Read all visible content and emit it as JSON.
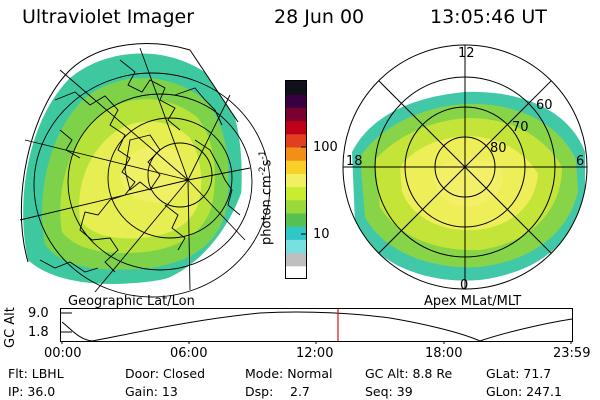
{
  "header": {
    "instrument": "Ultraviolet Imager",
    "date": "28 Jun 00",
    "time": "13:05:46 UT"
  },
  "colorbar": {
    "unit_label": "photon cm",
    "unit_sup1": "-2",
    "unit_mid": "s",
    "unit_sup2": "-1",
    "ticks": [
      "100",
      "10"
    ],
    "colors": [
      "#ffffff",
      "#bfbfbf",
      "#78e0e0",
      "#2ec8c8",
      "#58c050",
      "#9ad83c",
      "#c8ec30",
      "#f2f060",
      "#f8d028",
      "#f09018",
      "#e04020",
      "#c00018",
      "#7a0030",
      "#380040",
      "#101018"
    ]
  },
  "left_map": {
    "label": "Geographic Lat/Lon"
  },
  "right_map": {
    "label": "Apex  MLat/MLT",
    "mlt_labels": {
      "top": "12",
      "left": "18",
      "right": "6",
      "bottom": "0"
    },
    "lat_labels": [
      "60",
      "70",
      "80"
    ]
  },
  "altitude_plot": {
    "ylabel": "GC Alt",
    "yticks": [
      "9.0",
      "1.8"
    ],
    "xticks": [
      "00:00",
      "06:00",
      "12:00",
      "18:00",
      "23:59"
    ],
    "marker_time": "13:05"
  },
  "footer": {
    "flt": "Flt: LBHL",
    "ip": "IP: 36.0",
    "door": "Door: Closed",
    "gain": "Gain: 13",
    "mode": "Mode: Normal",
    "dsp_label": "Dsp:",
    "dsp_value": "2.7",
    "gc_alt": "GC Alt: 8.8 Re",
    "seq": "Seq: 39",
    "glat": "GLat:  71.7",
    "glon": "GLon: 247.1"
  }
}
